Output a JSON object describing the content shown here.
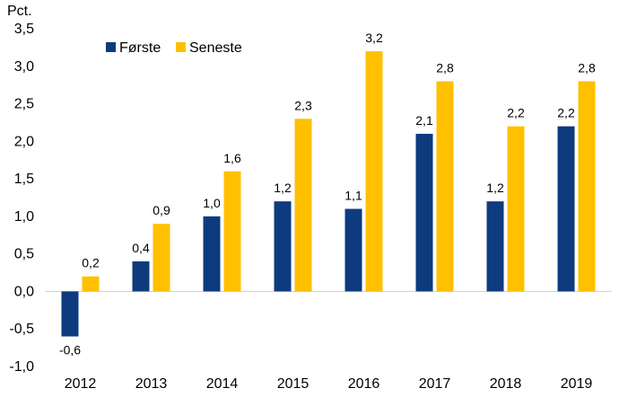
{
  "chart_data": {
    "type": "bar",
    "title": "",
    "xlabel": "",
    "ylabel": "Pct.",
    "ylim": [
      -1.0,
      3.5
    ],
    "yticks": [
      -1.0,
      -0.5,
      0.0,
      0.5,
      1.0,
      1.5,
      2.0,
      2.5,
      3.0,
      3.5
    ],
    "ytick_labels": [
      "-1,0",
      "-0,5",
      "0,0",
      "0,5",
      "1,0",
      "1,5",
      "2,0",
      "2,5",
      "3,0",
      "3,5"
    ],
    "grid": false,
    "legend_position": "top-left",
    "categories": [
      "2012",
      "2013",
      "2014",
      "2015",
      "2016",
      "2017",
      "2018",
      "2019"
    ],
    "series": [
      {
        "name": "Første",
        "color": "#0D3B7E",
        "values": [
          -0.6,
          0.4,
          1.0,
          1.2,
          1.1,
          2.1,
          1.2,
          2.2
        ],
        "labels": [
          "-0,6",
          "0,4",
          "1,0",
          "1,2",
          "1,1",
          "2,1",
          "1,2",
          "2,2"
        ]
      },
      {
        "name": "Seneste",
        "color": "#FFC000",
        "values": [
          0.2,
          0.9,
          1.6,
          2.3,
          3.2,
          2.8,
          2.2,
          2.8
        ],
        "labels": [
          "0,2",
          "0,9",
          "1,6",
          "2,3",
          "3,2",
          "2,8",
          "2,2",
          "2,8"
        ]
      }
    ]
  }
}
